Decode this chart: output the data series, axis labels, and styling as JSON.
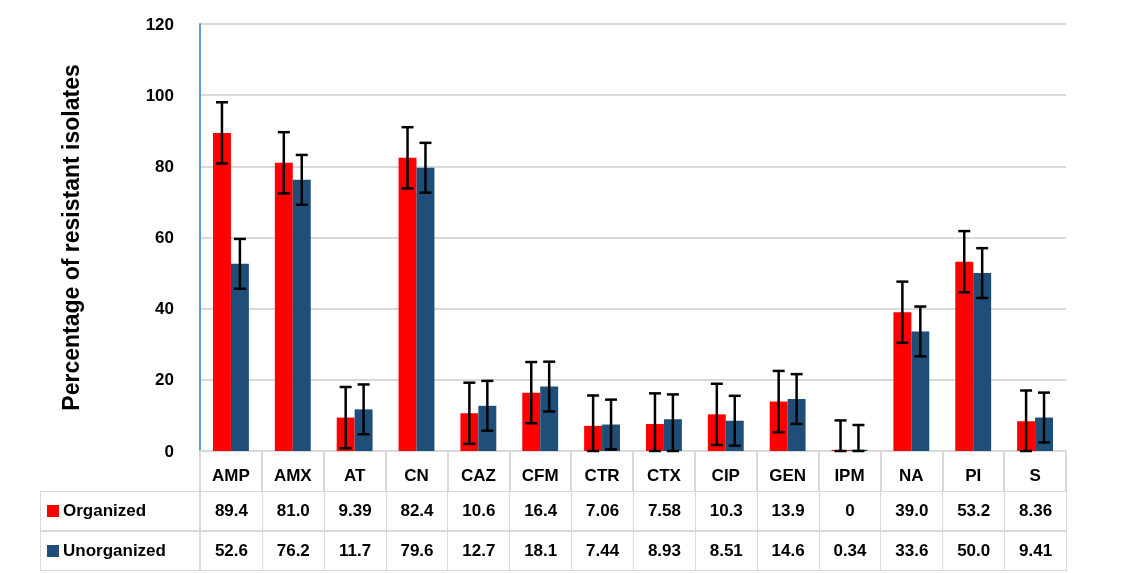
{
  "chart_data": {
    "type": "bar",
    "ylabel": "Percentage of resistant isolates",
    "categories": [
      "AMP",
      "AMX",
      "AT",
      "CN",
      "CAZ",
      "CFM",
      "CTR",
      "CTX",
      "CIP",
      "GEN",
      "IPM",
      "NA",
      "PI",
      "S"
    ],
    "series": [
      {
        "name": "Organized",
        "color": "#ff0000",
        "values": [
          89.4,
          81.0,
          9.39,
          82.4,
          10.6,
          16.4,
          7.06,
          7.58,
          10.3,
          13.9,
          0,
          39.0,
          53.2,
          8.36
        ],
        "value_labels": [
          "89.4",
          "81.0",
          "9.39",
          "82.4",
          "10.6",
          "16.4",
          "7.06",
          "7.58",
          "10.3",
          "13.9",
          "0",
          "39.0",
          "53.2",
          "8.36"
        ],
        "errors": [
          8.6,
          8.6,
          8.6,
          8.6,
          8.6,
          8.6,
          [
            0,
            15.6
          ],
          [
            0,
            16.2
          ],
          8.6,
          8.6,
          [
            0,
            8.6
          ],
          8.6,
          8.6,
          [
            0,
            17
          ]
        ]
      },
      {
        "name": "Unorganized",
        "color": "#1f4e79",
        "values": [
          52.6,
          76.2,
          11.7,
          79.6,
          12.7,
          18.1,
          7.44,
          8.93,
          8.51,
          14.6,
          0.34,
          33.6,
          50.0,
          9.41
        ],
        "value_labels": [
          "52.6",
          "76.2",
          "11.7",
          "79.6",
          "12.7",
          "18.1",
          "7.44",
          "8.93",
          "8.51",
          "14.6",
          "0.34",
          "33.6",
          "50.0",
          "9.41"
        ],
        "errors": [
          7,
          7,
          7,
          7,
          7,
          7,
          7,
          [
            0,
            15.9
          ],
          7,
          7,
          [
            0,
            7.3
          ],
          7,
          7,
          7
        ]
      }
    ],
    "ylim": [
      0,
      120
    ],
    "yticks": [
      0,
      20,
      40,
      60,
      80,
      100,
      120
    ],
    "grid": "y",
    "legend": "bottom left"
  }
}
